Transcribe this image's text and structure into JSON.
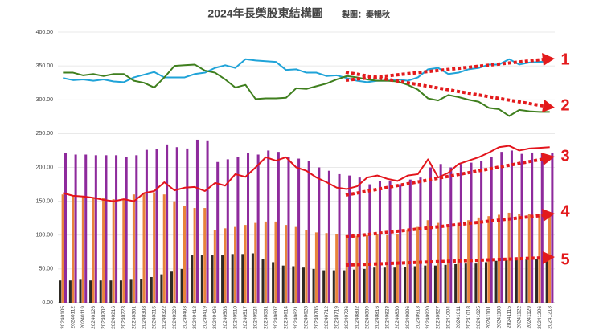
{
  "chart_data": {
    "type": "bar",
    "title": "2024年長榮股東結構圖",
    "subtitle": "製圖：秦暢秋",
    "categories": [
      "20240105",
      "20240112",
      "20240119",
      "20240126",
      "20240202",
      "20240216",
      "20240223",
      "20240301",
      "20240308",
      "20240315",
      "20240322",
      "20240329",
      "20240403",
      "20240412",
      "20240419",
      "20240426",
      "20240503",
      "20240510",
      "20240517",
      "20240524",
      "20240531",
      "20240607",
      "20240614",
      "20240621",
      "20240628",
      "20240705",
      "20240712",
      "20240719",
      "20240726",
      "20240802",
      "20240809",
      "20240816",
      "20240823",
      "20240830",
      "20240906",
      "20240913",
      "20240920",
      "20240927",
      "20241004",
      "20241011",
      "20241018",
      "20241025",
      "20241101",
      "20241108",
      "20241115",
      "20241122",
      "20241129",
      "20241206",
      "20241213"
    ],
    "ylim": [
      0,
      400
    ],
    "yticks": [
      {
        "value": 0,
        "label": "0.00"
      },
      {
        "value": 50,
        "label": "50.00"
      },
      {
        "value": 100,
        "label": "100.00"
      },
      {
        "value": 150,
        "label": "150.00"
      },
      {
        "value": 200,
        "label": "200.00"
      },
      {
        "value": 250,
        "label": "250.00"
      },
      {
        "value": 300,
        "label": "300.00"
      },
      {
        "value": 350,
        "label": "350.00"
      },
      {
        "value": 400,
        "label": "400.00"
      }
    ],
    "grid": true,
    "series": [
      {
        "type": "bar",
        "color": "#2e2a24",
        "values": [
          33,
          33,
          34,
          33,
          33,
          33,
          33,
          34,
          35,
          38,
          42,
          46,
          50,
          70,
          70,
          70,
          70,
          72,
          72,
          73,
          65,
          60,
          55,
          54,
          52,
          50,
          48,
          48,
          48,
          49,
          50,
          52,
          52,
          52,
          53,
          54,
          55,
          55,
          56,
          57,
          58,
          58,
          60,
          62,
          63,
          63,
          64,
          65,
          65
        ]
      },
      {
        "type": "bar",
        "color": "#e8843c",
        "values": [
          160,
          158,
          157,
          155,
          155,
          153,
          153,
          160,
          162,
          163,
          160,
          150,
          143,
          140,
          140,
          108,
          110,
          112,
          115,
          118,
          120,
          120,
          115,
          112,
          108,
          104,
          103,
          101,
          100,
          99,
          100,
          101,
          100,
          102,
          108,
          112,
          122,
          118,
          116,
          118,
          122,
          126,
          128,
          130,
          133,
          131,
          131,
          131,
          131
        ]
      },
      {
        "type": "bar",
        "color": "#8e2a9c",
        "values": [
          221,
          219,
          219,
          218,
          218,
          218,
          216,
          218,
          226,
          227,
          234,
          230,
          228,
          241,
          240,
          208,
          212,
          216,
          221,
          219,
          225,
          223,
          215,
          213,
          210,
          200,
          195,
          190,
          188,
          185,
          175,
          180,
          180,
          175,
          182,
          185,
          200,
          205,
          200,
          205,
          207,
          210,
          215,
          223,
          225,
          220,
          222,
          221,
          221
        ]
      },
      {
        "type": "line",
        "color": "#1fa3d8",
        "values": [
          332,
          329,
          330,
          328,
          330,
          327,
          326,
          333,
          337,
          341,
          333,
          333,
          333,
          338,
          340,
          347,
          351,
          347,
          360,
          358,
          357,
          356,
          344,
          345,
          340,
          340,
          335,
          336,
          332,
          328,
          326,
          328,
          328,
          330,
          328,
          333,
          345,
          347,
          338,
          340,
          345,
          347,
          352,
          352,
          360,
          352,
          355,
          356,
          357
        ]
      },
      {
        "type": "line",
        "color": "#3f7f1e",
        "values": [
          340,
          340,
          336,
          338,
          335,
          338,
          338,
          328,
          325,
          318,
          333,
          350,
          351,
          352,
          343,
          340,
          330,
          318,
          322,
          301,
          302,
          302,
          303,
          317,
          316,
          320,
          324,
          330,
          335,
          333,
          330,
          328,
          328,
          327,
          322,
          315,
          302,
          299,
          307,
          304,
          300,
          297,
          288,
          286,
          276,
          285,
          283,
          282,
          282
        ]
      },
      {
        "type": "line",
        "color": "#e3141c",
        "values": [
          162,
          158,
          157,
          155,
          152,
          150,
          153,
          150,
          162,
          165,
          178,
          166,
          170,
          171,
          165,
          177,
          173,
          190,
          186,
          200,
          215,
          210,
          215,
          200,
          195,
          185,
          178,
          170,
          168,
          172,
          185,
          188,
          183,
          180,
          188,
          190,
          212,
          185,
          192,
          205,
          210,
          215,
          222,
          230,
          232,
          225,
          228,
          229,
          230
        ]
      }
    ],
    "annotations": [
      "1",
      "2",
      "3",
      "4",
      "5"
    ]
  }
}
